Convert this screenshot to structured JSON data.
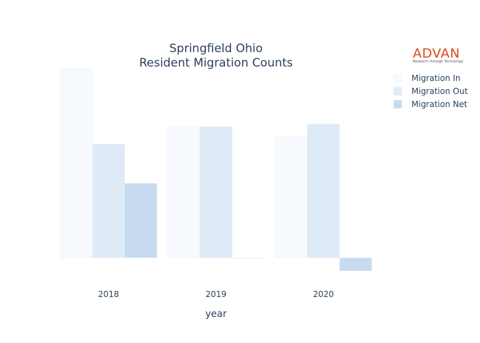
{
  "chart_data": {
    "type": "bar",
    "title": [
      "Springfield Ohio",
      "Resident Migration Counts"
    ],
    "xlabel": "year",
    "ylabel": "",
    "categories": [
      "2018",
      "2019",
      "2020"
    ],
    "series": [
      {
        "name": "Migration In",
        "values": [
          1600,
          1110,
          1020
        ],
        "color": "#f7fbff"
      },
      {
        "name": "Migration Out",
        "values": [
          960,
          1110,
          1130
        ],
        "color": "#deebf7"
      },
      {
        "name": "Migration Net",
        "values": [
          630,
          0,
          -110
        ],
        "color": "#c6dbef"
      }
    ],
    "ylim": [
      -210,
      1600
    ],
    "grid": false,
    "legend_position": "top-right"
  },
  "logo": {
    "text": "ADVAN",
    "tagline": "Research through Technology"
  }
}
